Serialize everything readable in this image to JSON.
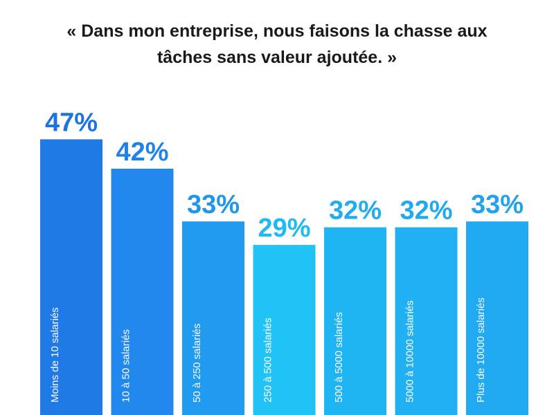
{
  "title": {
    "line1": "« Dans mon entreprise, nous faisons la chasse aux",
    "line2": "tâches sans valeur ajoutée. »"
  },
  "colors": {
    "bar_fills": [
      "#1f7ae6",
      "#2388ee",
      "#209bef",
      "#21c3f7",
      "#1fb4f2",
      "#21b1f2",
      "#21a9f1"
    ],
    "label_fills": [
      "#1c74e0",
      "#1f82e9",
      "#1f96ea",
      "#20b9f2",
      "#20acee",
      "#20aaed",
      "#20a2ec"
    ]
  },
  "chart_data": {
    "type": "bar",
    "title": "« Dans mon entreprise, nous faisons la chasse aux tâches sans valeur ajoutée. »",
    "categories": [
      "Moins de 10 salariés",
      "10 à 50 salariés",
      "50 à 250 salariés",
      "250 à 500 salariés",
      "500 à 5000 salariés",
      "5000 à 10000 salariés",
      "Plus de 10000 salariés"
    ],
    "values": [
      47,
      42,
      33,
      29,
      32,
      32,
      33
    ],
    "value_labels": [
      "47%",
      "42%",
      "33%",
      "29%",
      "32%",
      "32%",
      "33%"
    ],
    "unit": "%",
    "xlabel": "",
    "ylabel": "",
    "grid": false,
    "legend": "none"
  }
}
